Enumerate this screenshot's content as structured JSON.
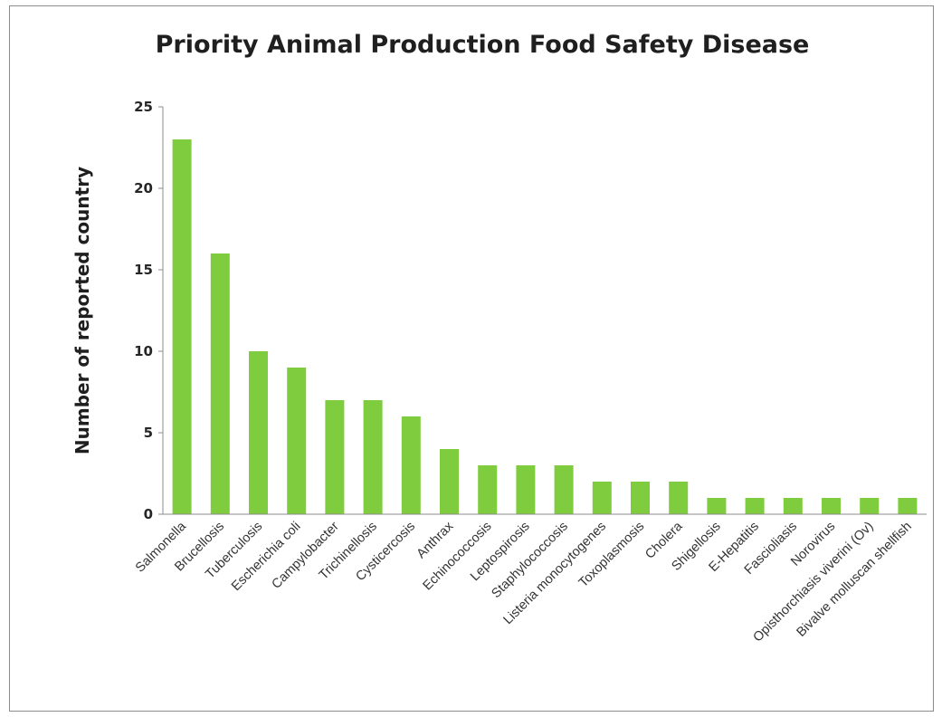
{
  "chart_data": {
    "type": "bar",
    "title": "Priority Animal Production Food Safety Disease",
    "xlabel": "",
    "ylabel": "Number of reported country",
    "ylim": [
      0,
      25
    ],
    "yticks": [
      0,
      5,
      10,
      15,
      20,
      25
    ],
    "grid": false,
    "legend": "none",
    "bar_color": "#7fcd3e",
    "categories": [
      "Salmonella",
      "Brucellosis",
      "Tuberculosis",
      "Escherichia coli",
      "Campylobacter",
      "Trichinellosis",
      "Cysticercosis",
      "Anthrax",
      "Echinococcosis",
      "Leptospirosis",
      "Staphylococcosis",
      "Listeria monocytogenes",
      "Toxoplasmosis",
      "Cholera",
      "Shigellosis",
      "E-Hepatitis",
      "Fascioliasis",
      "Norovirus",
      "Opisthorchiasis viverini (Ov)",
      "Bivalve molluscan shellfish"
    ],
    "values": [
      23,
      16,
      10,
      9,
      7,
      7,
      6,
      4,
      3,
      3,
      3,
      2,
      2,
      2,
      1,
      1,
      1,
      1,
      1,
      1
    ]
  }
}
